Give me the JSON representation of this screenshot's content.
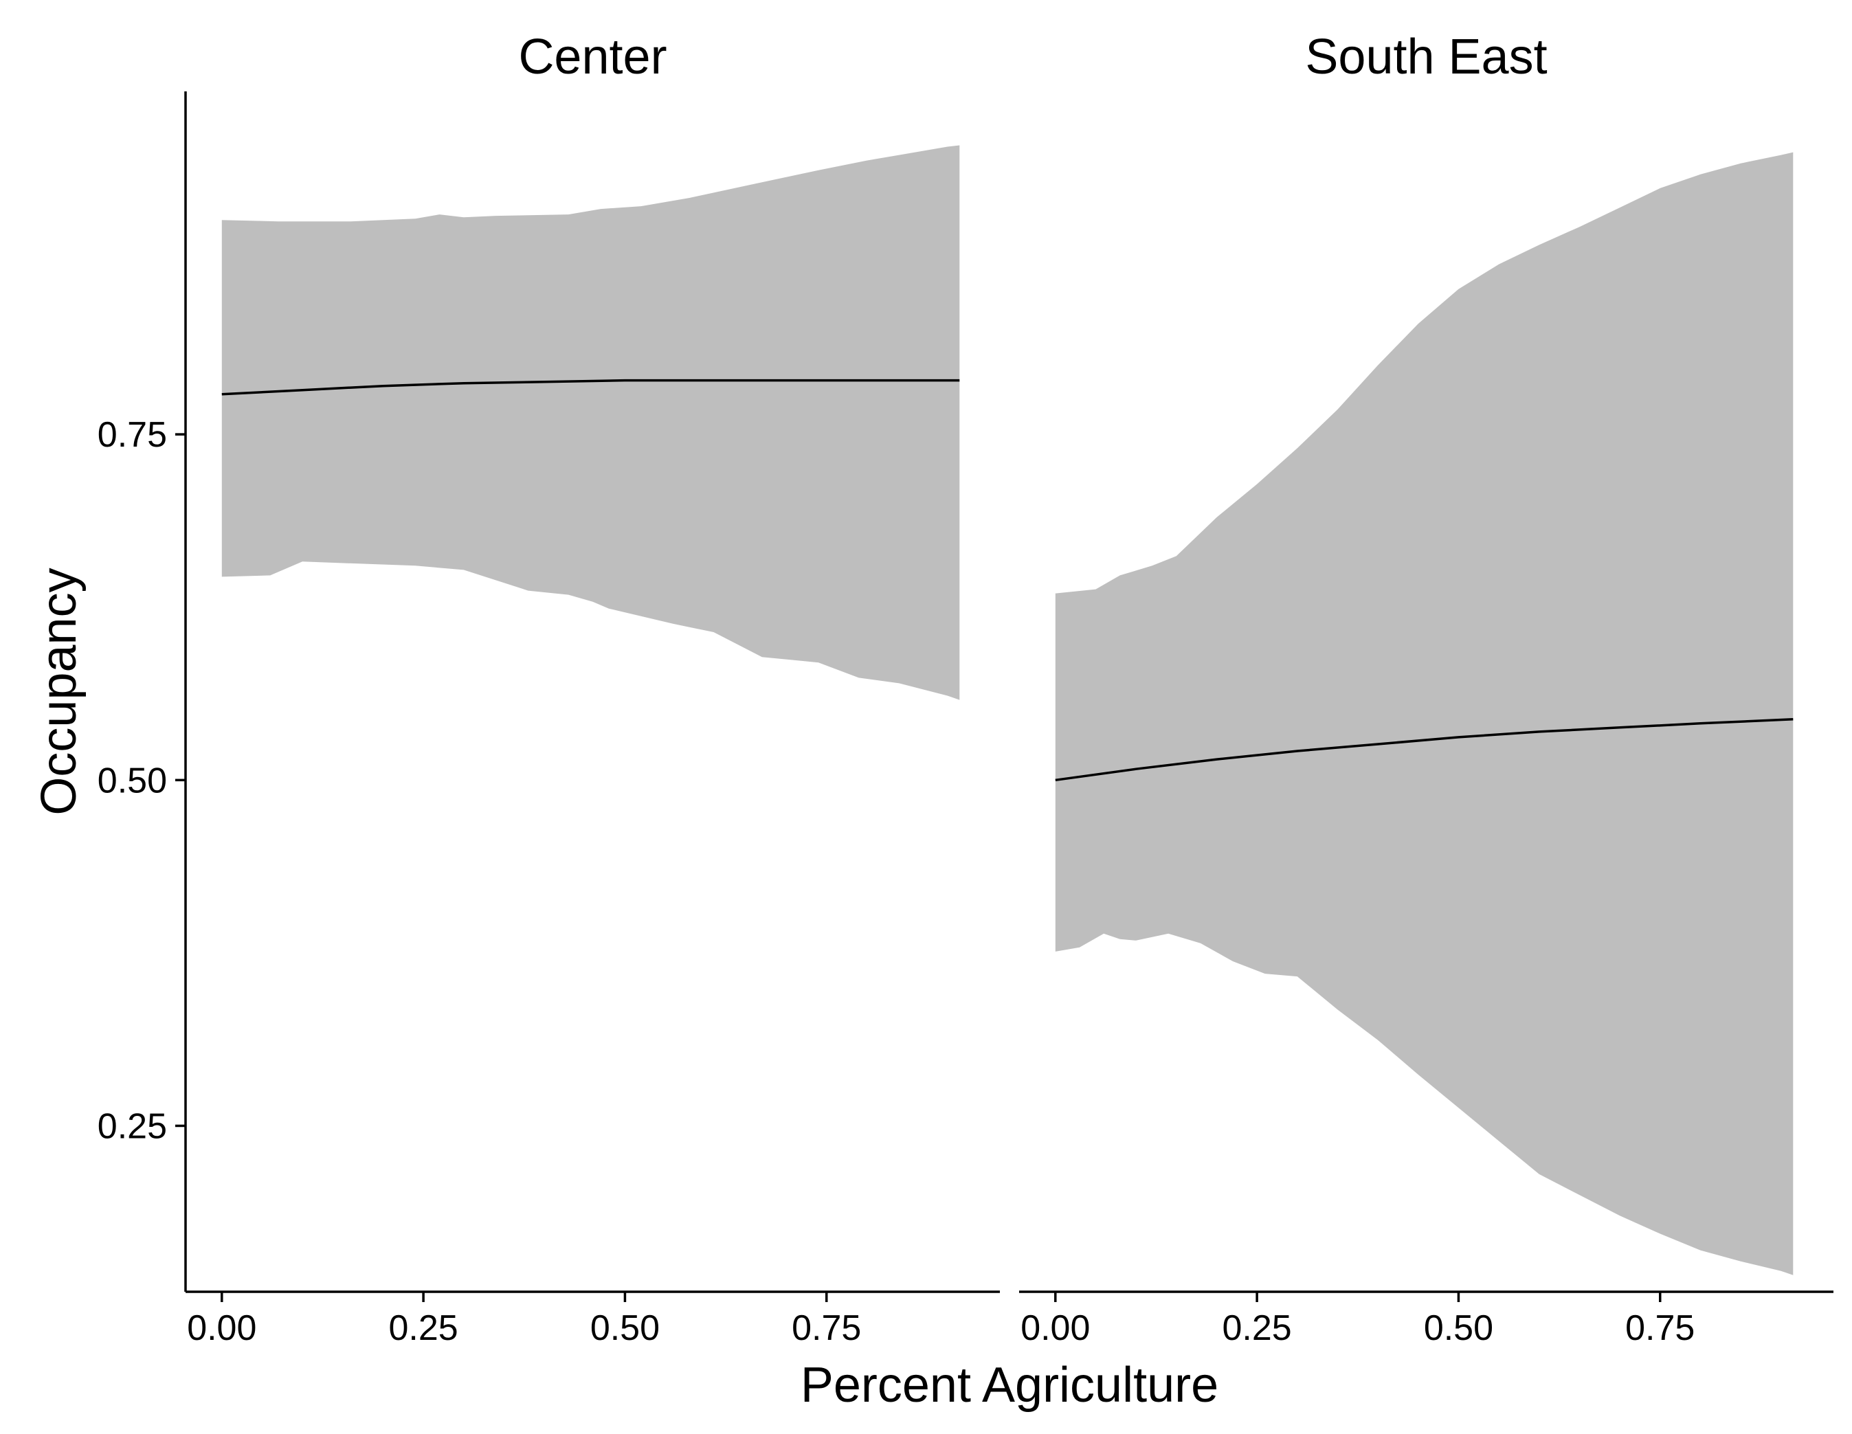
{
  "chart_data": {
    "type": "area",
    "xlabel": "Percent Agriculture",
    "ylabel": "Occupancy",
    "xlim": [
      -0.045,
      0.965
    ],
    "ylim": [
      0.13,
      0.998
    ],
    "x_ticks": [
      0.0,
      0.25,
      0.5,
      0.75
    ],
    "x_tick_labels": [
      "0.00",
      "0.25",
      "0.50",
      "0.75"
    ],
    "y_ticks": [
      0.25,
      0.5,
      0.75
    ],
    "y_tick_labels": [
      "0.25",
      "0.50",
      "0.75"
    ],
    "grid": false,
    "legend": "none",
    "colors": {
      "ribbon": "#bebebe",
      "line": "#000000",
      "axis": "#000000"
    },
    "panels": [
      {
        "title": "Center",
        "line": {
          "x": [
            0.0,
            0.1,
            0.2,
            0.3,
            0.4,
            0.5,
            0.6,
            0.7,
            0.8,
            0.915
          ],
          "y": [
            0.779,
            0.782,
            0.785,
            0.787,
            0.788,
            0.789,
            0.789,
            0.789,
            0.789,
            0.789
          ]
        },
        "ribbon_upper": {
          "x": [
            0.0,
            0.07,
            0.16,
            0.24,
            0.27,
            0.3,
            0.34,
            0.43,
            0.47,
            0.52,
            0.58,
            0.66,
            0.74,
            0.8,
            0.84,
            0.9,
            0.915
          ],
          "y": [
            0.905,
            0.904,
            0.904,
            0.906,
            0.909,
            0.907,
            0.908,
            0.909,
            0.913,
            0.915,
            0.921,
            0.931,
            0.941,
            0.948,
            0.952,
            0.958,
            0.959
          ]
        },
        "ribbon_lower": {
          "x": [
            0.0,
            0.06,
            0.1,
            0.24,
            0.3,
            0.38,
            0.43,
            0.46,
            0.48,
            0.56,
            0.61,
            0.67,
            0.74,
            0.79,
            0.84,
            0.9,
            0.915
          ],
          "y": [
            0.647,
            0.648,
            0.658,
            0.655,
            0.652,
            0.637,
            0.634,
            0.629,
            0.624,
            0.613,
            0.607,
            0.589,
            0.585,
            0.574,
            0.57,
            0.561,
            0.558
          ]
        }
      },
      {
        "title": "South East",
        "line": {
          "x": [
            0.0,
            0.1,
            0.2,
            0.3,
            0.4,
            0.5,
            0.6,
            0.7,
            0.8,
            0.915
          ],
          "y": [
            0.5,
            0.508,
            0.515,
            0.521,
            0.526,
            0.531,
            0.535,
            0.538,
            0.541,
            0.544
          ]
        },
        "ribbon_upper": {
          "x": [
            0.0,
            0.05,
            0.08,
            0.12,
            0.15,
            0.2,
            0.25,
            0.3,
            0.35,
            0.4,
            0.45,
            0.5,
            0.55,
            0.6,
            0.65,
            0.7,
            0.75,
            0.8,
            0.85,
            0.9,
            0.915
          ],
          "y": [
            0.635,
            0.638,
            0.648,
            0.655,
            0.662,
            0.69,
            0.714,
            0.74,
            0.768,
            0.8,
            0.83,
            0.855,
            0.873,
            0.887,
            0.9,
            0.914,
            0.928,
            0.938,
            0.946,
            0.952,
            0.954
          ]
        },
        "ribbon_lower": {
          "x": [
            0.0,
            0.03,
            0.06,
            0.08,
            0.1,
            0.14,
            0.18,
            0.22,
            0.26,
            0.3,
            0.35,
            0.4,
            0.45,
            0.5,
            0.55,
            0.6,
            0.65,
            0.7,
            0.75,
            0.8,
            0.85,
            0.9,
            0.915
          ],
          "y": [
            0.376,
            0.379,
            0.389,
            0.385,
            0.384,
            0.389,
            0.382,
            0.369,
            0.36,
            0.358,
            0.334,
            0.312,
            0.287,
            0.263,
            0.239,
            0.215,
            0.2,
            0.185,
            0.172,
            0.16,
            0.152,
            0.145,
            0.142
          ]
        }
      }
    ]
  }
}
